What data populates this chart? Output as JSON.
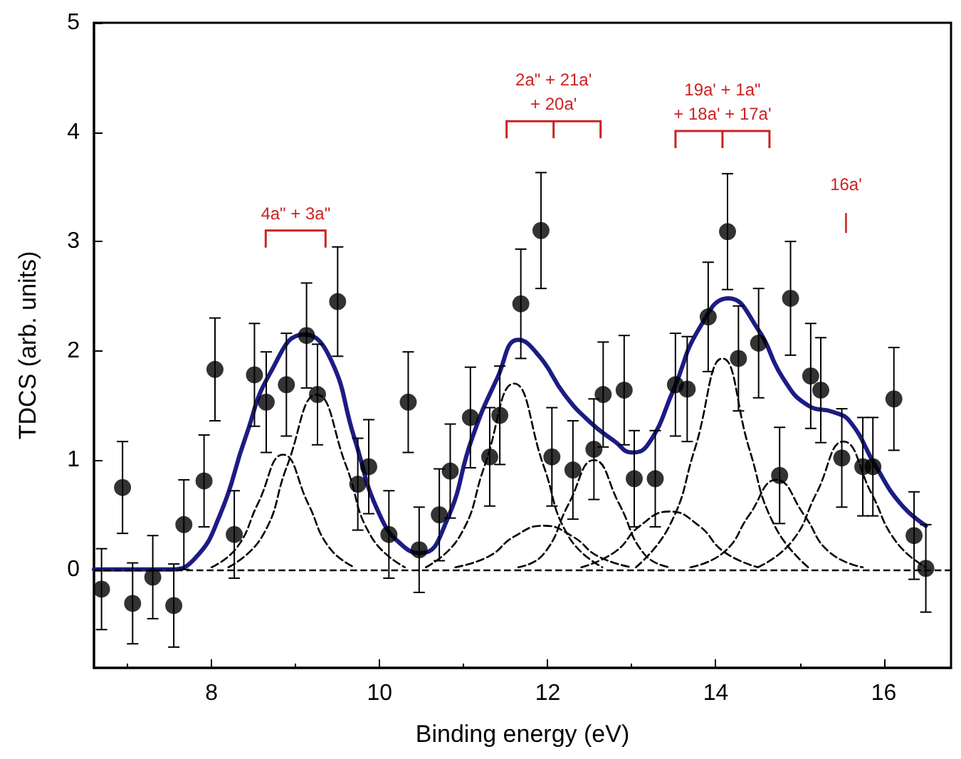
{
  "chart_data": {
    "type": "scatter",
    "xlabel": "Binding energy (eV)",
    "ylabel": "TDCS (arb. units)",
    "xlim": [
      6.6,
      16.8
    ],
    "xticks": [
      8,
      10,
      12,
      14,
      16
    ],
    "ylim": [
      -0.9,
      5
    ],
    "yticks": [
      0,
      1,
      2,
      3,
      4,
      5
    ],
    "grid": false,
    "ref_lines": [
      {
        "axis": "y",
        "value": 0,
        "color": "#000000",
        "line_style": "dashed"
      }
    ],
    "annotations": [
      "4a\" + 3a\"",
      "2a\" + 21a'\n+ 20a'",
      "19a' + 1a\"\n+ 18a' + 17a'",
      "16a'"
    ],
    "series": [
      {
        "type": "line",
        "color": "#000000",
        "line_style": "dashed",
        "marker": "none",
        "x": [
          8.0,
          8.3,
          8.55,
          8.85,
          9.15,
          9.4,
          9.7
        ],
        "values": [
          0.02,
          0.2,
          0.6,
          1.05,
          0.6,
          0.2,
          0.02
        ]
      },
      {
        "type": "line",
        "color": "#000000",
        "line_style": "dashed",
        "marker": "none",
        "x": [
          8.2,
          8.6,
          8.9,
          9.25,
          9.6,
          9.9,
          10.3
        ],
        "values": [
          0.02,
          0.3,
          0.95,
          1.6,
          0.95,
          0.3,
          0.02
        ]
      },
      {
        "type": "line",
        "color": "#000000",
        "line_style": "dashed",
        "marker": "none",
        "x": [
          10.55,
          10.95,
          11.25,
          11.6,
          11.95,
          12.25,
          12.65
        ],
        "values": [
          0.02,
          0.3,
          0.95,
          1.7,
          0.95,
          0.3,
          0.02
        ]
      },
      {
        "type": "line",
        "color": "#000000",
        "line_style": "dashed",
        "marker": "none",
        "x": [
          10.9,
          11.3,
          11.6,
          11.95,
          12.3,
          12.6,
          13.0
        ],
        "values": [
          0.02,
          0.12,
          0.3,
          0.4,
          0.3,
          0.12,
          0.02
        ]
      },
      {
        "type": "line",
        "color": "#000000",
        "line_style": "dashed",
        "marker": "none",
        "x": [
          11.65,
          11.95,
          12.25,
          12.55,
          12.85,
          13.15,
          13.45
        ],
        "values": [
          0.02,
          0.14,
          0.6,
          1.0,
          0.6,
          0.14,
          0.02
        ]
      },
      {
        "type": "line",
        "color": "#000000",
        "line_style": "dashed",
        "marker": "none",
        "x": [
          12.4,
          12.8,
          13.1,
          13.45,
          13.8,
          14.1,
          14.5
        ],
        "values": [
          0.02,
          0.16,
          0.4,
          0.53,
          0.4,
          0.16,
          0.02
        ]
      },
      {
        "type": "line",
        "color": "#000000",
        "line_style": "dashed",
        "marker": "none",
        "x": [
          13.05,
          13.45,
          13.75,
          14.08,
          14.4,
          14.7,
          15.1
        ],
        "values": [
          0.02,
          0.4,
          1.1,
          1.93,
          1.1,
          0.4,
          0.02
        ]
      },
      {
        "type": "line",
        "color": "#000000",
        "line_style": "dashed",
        "marker": "none",
        "x": [
          13.7,
          14.1,
          14.4,
          14.72,
          15.05,
          15.35,
          15.75
        ],
        "values": [
          0.02,
          0.16,
          0.5,
          0.82,
          0.5,
          0.16,
          0.02
        ]
      },
      {
        "type": "line",
        "color": "#000000",
        "line_style": "dashed",
        "marker": "none",
        "x": [
          14.5,
          14.9,
          15.2,
          15.52,
          15.85,
          16.15,
          16.5
        ],
        "values": [
          0.02,
          0.25,
          0.7,
          1.17,
          0.7,
          0.25,
          0.02
        ]
      },
      {
        "type": "line",
        "color": "#1c1c84",
        "line_style": "solid",
        "marker": "none",
        "x": [
          6.6,
          7.5,
          7.8,
          8.1,
          8.4,
          8.7,
          9.1,
          9.4,
          9.7,
          10.0,
          10.3,
          10.5,
          10.8,
          11.1,
          11.4,
          11.65,
          11.9,
          12.2,
          12.5,
          12.8,
          13.0,
          13.2,
          13.5,
          13.8,
          14.15,
          14.5,
          14.8,
          15.1,
          15.4,
          15.6,
          15.9,
          16.2,
          16.5
        ],
        "values": [
          0,
          0,
          0.1,
          0.5,
          1.2,
          1.8,
          2.15,
          1.95,
          1.2,
          0.5,
          0.2,
          0.15,
          0.45,
          1.2,
          1.75,
          2.1,
          1.95,
          1.6,
          1.35,
          1.17,
          1.07,
          1.15,
          1.65,
          2.2,
          2.48,
          2.2,
          1.75,
          1.5,
          1.44,
          1.35,
          0.95,
          0.6,
          0.4
        ]
      },
      {
        "type": "scatter",
        "color": "#000000",
        "marker": "circle",
        "x": [
          6.69,
          6.94,
          7.06,
          7.3,
          7.55,
          7.67,
          7.91,
          8.04,
          8.27,
          8.51,
          8.65,
          8.89,
          9.13,
          9.26,
          9.5,
          9.74,
          9.87,
          10.11,
          10.34,
          10.47,
          10.71,
          10.84,
          11.08,
          11.31,
          11.43,
          11.68,
          11.92,
          12.05,
          12.3,
          12.55,
          12.66,
          12.91,
          13.03,
          13.28,
          13.52,
          13.66,
          13.91,
          14.14,
          14.27,
          14.51,
          14.76,
          14.89,
          15.13,
          15.25,
          15.5,
          15.75,
          15.87,
          16.12,
          16.36,
          16.5
        ],
        "values": [
          -0.18,
          0.75,
          -0.31,
          -0.07,
          -0.33,
          0.41,
          0.81,
          1.83,
          0.32,
          1.78,
          1.53,
          1.69,
          2.14,
          1.6,
          2.45,
          0.78,
          0.94,
          0.32,
          1.53,
          0.18,
          0.5,
          0.9,
          1.39,
          1.03,
          1.41,
          2.43,
          3.1,
          1.03,
          0.91,
          1.1,
          1.6,
          1.64,
          0.83,
          0.83,
          1.69,
          1.65,
          2.31,
          3.09,
          1.93,
          2.07,
          0.86,
          2.48,
          1.77,
          1.64,
          1.02,
          0.94,
          0.94,
          1.56,
          0.31,
          0.01
        ],
        "errors": [
          0.37,
          0.42,
          0.37,
          0.38,
          0.38,
          0.41,
          0.42,
          0.47,
          0.4,
          0.47,
          0.46,
          0.47,
          0.48,
          0.46,
          0.5,
          0.42,
          0.43,
          0.4,
          0.46,
          0.39,
          0.42,
          0.43,
          0.46,
          0.45,
          0.45,
          0.5,
          0.53,
          0.45,
          0.45,
          0.46,
          0.48,
          0.5,
          0.44,
          0.44,
          0.47,
          0.48,
          0.5,
          0.53,
          0.48,
          0.5,
          0.44,
          0.52,
          0.48,
          0.48,
          0.45,
          0.45,
          0.45,
          0.47,
          0.4,
          0.4
        ]
      }
    ]
  }
}
